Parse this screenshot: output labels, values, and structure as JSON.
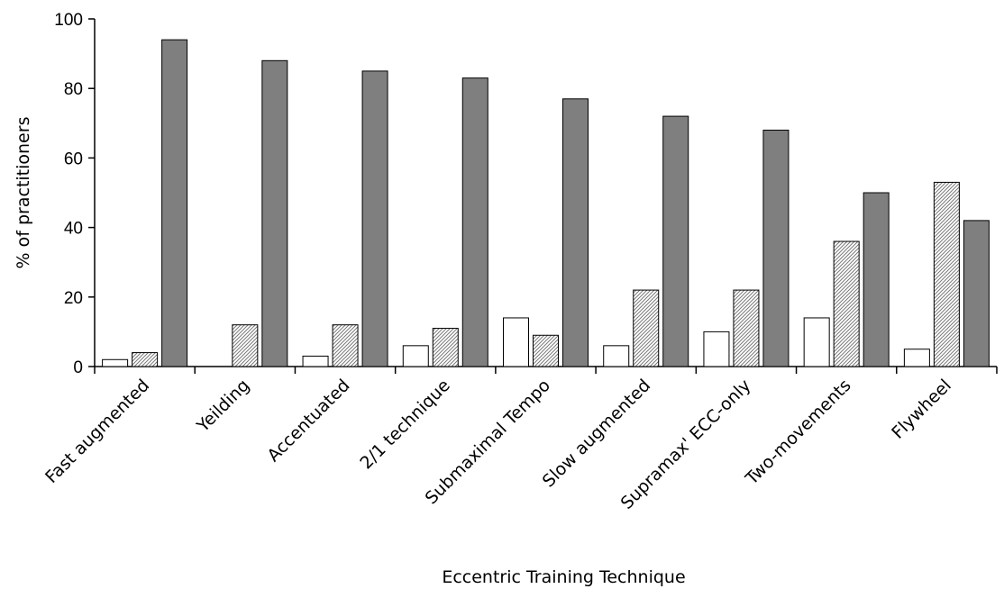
{
  "chart_data": {
    "type": "bar",
    "title": "",
    "xlabel": "Eccentric Training Technique",
    "ylabel": "% of practitioners",
    "ylim": [
      0,
      100
    ],
    "yticks": [
      0,
      20,
      40,
      60,
      80,
      100
    ],
    "grid": false,
    "legend": "none",
    "categories": [
      "Fast augmented",
      "Yeilding",
      "Accentuated",
      "2/1 technique",
      "Submaximal Tempo",
      "Slow augmented",
      "Supramax' ECC-only",
      "Two-movements",
      "Flywheel"
    ],
    "series": [
      {
        "fill": "white",
        "color": "#ffffff",
        "values": [
          2,
          0,
          3,
          6,
          14,
          6,
          10,
          14,
          5
        ]
      },
      {
        "fill": "hatched",
        "color": "#bdbdbd",
        "values": [
          4,
          12,
          12,
          11,
          9,
          22,
          22,
          36,
          53
        ]
      },
      {
        "fill": "solid",
        "color": "#7f7f7f",
        "values": [
          94,
          88,
          85,
          83,
          77,
          72,
          68,
          50,
          42
        ]
      }
    ]
  }
}
